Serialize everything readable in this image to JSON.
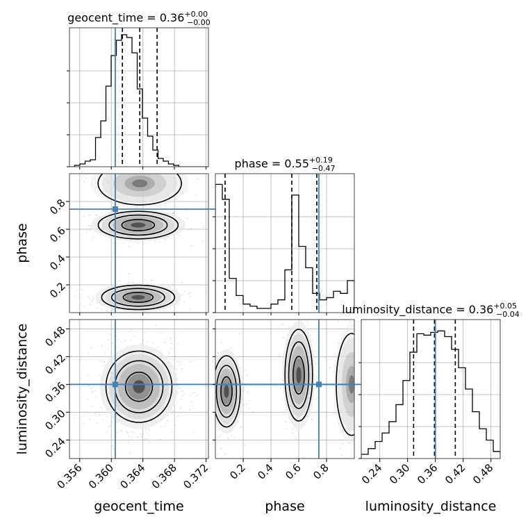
{
  "chart_data": {
    "type": "corner",
    "parameters": [
      "geocent_time",
      "phase",
      "luminosity_distance"
    ],
    "truths": {
      "geocent_time": 0.3605,
      "phase": 0.745,
      "luminosity_distance": 0.36
    },
    "titles": [
      {
        "param": "geocent_time",
        "text": "geocent_time = 0.36",
        "sup": "+0.00",
        "sub": "−0.00"
      },
      {
        "param": "phase",
        "text": "phase = 0.55",
        "sup": "+0.19",
        "sub": "−0.47"
      },
      {
        "param": "luminosity_distance",
        "text": "luminosity_distance = 0.36",
        "sup": "+0.05",
        "sub": "−0.04"
      }
    ],
    "axes": {
      "geocent_time": {
        "range": [
          0.3547,
          0.3723
        ],
        "ticks": [
          "0.356",
          "0.360",
          "0.364",
          "0.368",
          "0.372"
        ],
        "tick_values": [
          0.356,
          0.36,
          0.364,
          0.368,
          0.372
        ]
      },
      "phase": {
        "range": [
          0.0,
          1.0
        ],
        "ticks_x": [
          "0.2",
          "0.4",
          "0.6",
          "0.8"
        ],
        "tick_values": [
          0.2,
          0.4,
          0.6,
          0.8
        ],
        "ticks_y": [
          "0.2",
          "0.4",
          "0.6",
          "0.8"
        ]
      },
      "luminosity_distance": {
        "range": [
          0.2,
          0.5
        ],
        "ticks": [
          "0.24",
          "0.30",
          "0.36",
          "0.42",
          "0.48"
        ],
        "tick_values": [
          0.24,
          0.3,
          0.36,
          0.42,
          0.48
        ]
      }
    },
    "quantiles": {
      "geocent_time": [
        0.3614,
        0.3636,
        0.3658
      ],
      "phase": [
        0.07,
        0.55,
        0.73
      ],
      "luminosity_distance": [
        0.313,
        0.358,
        0.403
      ]
    },
    "histograms": {
      "geocent_time": {
        "start": 0.3547,
        "bin_width": 0.00066,
        "heights": [
          0,
          0.01,
          0.02,
          0.04,
          0.05,
          0.21,
          0.33,
          0.58,
          0.8,
          0.91,
          0.95,
          0.93,
          0.82,
          0.56,
          0.35,
          0.22,
          0.12,
          0.06,
          0.04,
          0.02,
          0.01,
          0.0,
          0.0,
          0.0,
          0.0,
          0.0,
          0.0
        ]
      },
      "phase": {
        "start": 0.0,
        "bin_width": 0.05,
        "heights": [
          0.6,
          0.53,
          0.16,
          0.08,
          0.04,
          0.03,
          0.02,
          0.02,
          0.04,
          0.06,
          0.2,
          0.55,
          0.31,
          0.21,
          0.09,
          0.06,
          0.07,
          0.1,
          0.09,
          0.15
        ]
      },
      "luminosity_distance": {
        "start": 0.2,
        "bin_width": 0.015,
        "heights": [
          0.03,
          0.07,
          0.12,
          0.18,
          0.26,
          0.38,
          0.55,
          0.75,
          0.88,
          0.87,
          0.89,
          0.9,
          0.86,
          0.77,
          0.64,
          0.49,
          0.33,
          0.21,
          0.13,
          0.05,
          0.03
        ]
      }
    },
    "ylim_hist": {
      "geocent_time": [
        0,
        1.0
      ],
      "phase": [
        0,
        0.65
      ],
      "luminosity_distance": [
        0,
        0.98
      ]
    },
    "blobs": [
      {
        "panel": "phase|geocent_time",
        "cx": 0.3634,
        "cy": 0.63,
        "sx": 0.0023,
        "sy": 0.045,
        "weight": 0.4
      },
      {
        "panel": "phase|geocent_time",
        "cx": 0.3634,
        "cy": 0.11,
        "sx": 0.0021,
        "sy": 0.04,
        "weight": 0.45
      },
      {
        "panel": "phase|geocent_time",
        "cx": 0.3636,
        "cy": 0.93,
        "sx": 0.0024,
        "sy": 0.07,
        "weight": 0.15
      },
      {
        "panel": "luminosity_distance|geocent_time",
        "cx": 0.3635,
        "cy": 0.355,
        "sx": 0.0019,
        "sy": 0.035,
        "weight": 1.0
      },
      {
        "panel": "luminosity_distance|phase",
        "cx": 0.08,
        "cy": 0.345,
        "sx": 0.045,
        "sy": 0.035,
        "weight": 0.45
      },
      {
        "panel": "luminosity_distance|phase",
        "cx": 0.6,
        "cy": 0.38,
        "sx": 0.045,
        "sy": 0.045,
        "weight": 0.4
      },
      {
        "panel": "luminosity_distance|phase",
        "cx": 0.98,
        "cy": 0.36,
        "sx": 0.05,
        "sy": 0.05,
        "weight": 0.15
      }
    ],
    "colors": {
      "truth": "#4682b4",
      "hist": "#000000",
      "quantile": "#000000",
      "grid": "#b0b0b0",
      "samples": "#808080"
    },
    "grid": true
  }
}
